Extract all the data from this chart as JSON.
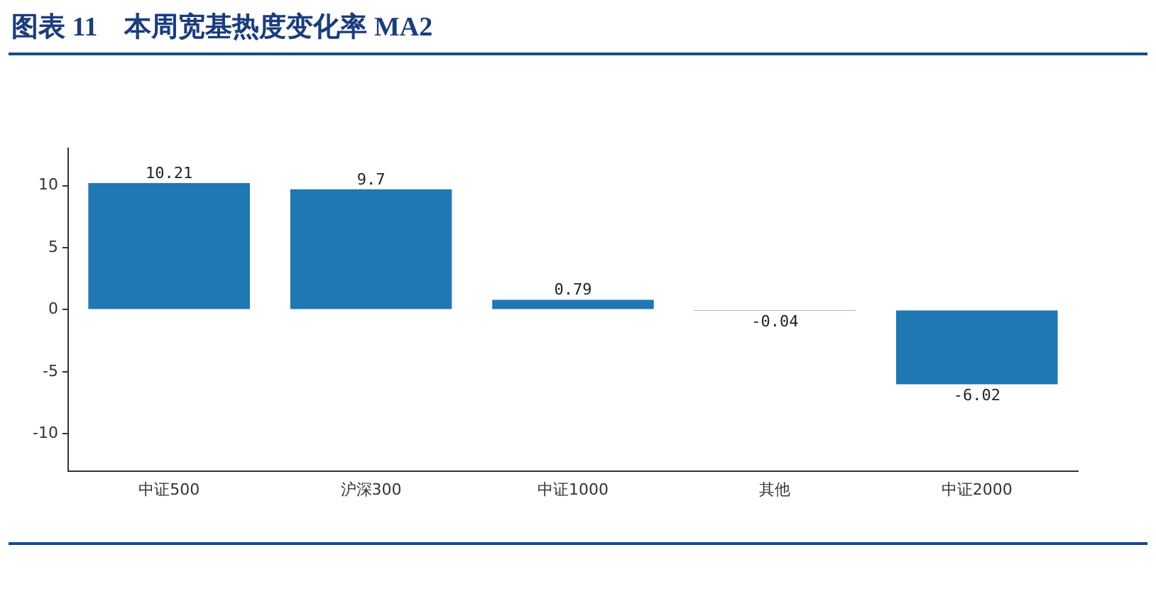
{
  "chart_data": {
    "type": "bar",
    "title": "图表 11　本周宽基热度变化率 MA2",
    "categories": [
      "中证500",
      "沪深300",
      "中证1000",
      "其他",
      "中证2000"
    ],
    "values": [
      10.21,
      9.7,
      0.79,
      -0.04,
      -6.02
    ],
    "color": "#1f77b4",
    "ylim": [
      -13,
      13
    ],
    "yticks": [
      -10,
      -5,
      0,
      5,
      10
    ],
    "grid": false,
    "legend": false,
    "data_labels": true
  }
}
